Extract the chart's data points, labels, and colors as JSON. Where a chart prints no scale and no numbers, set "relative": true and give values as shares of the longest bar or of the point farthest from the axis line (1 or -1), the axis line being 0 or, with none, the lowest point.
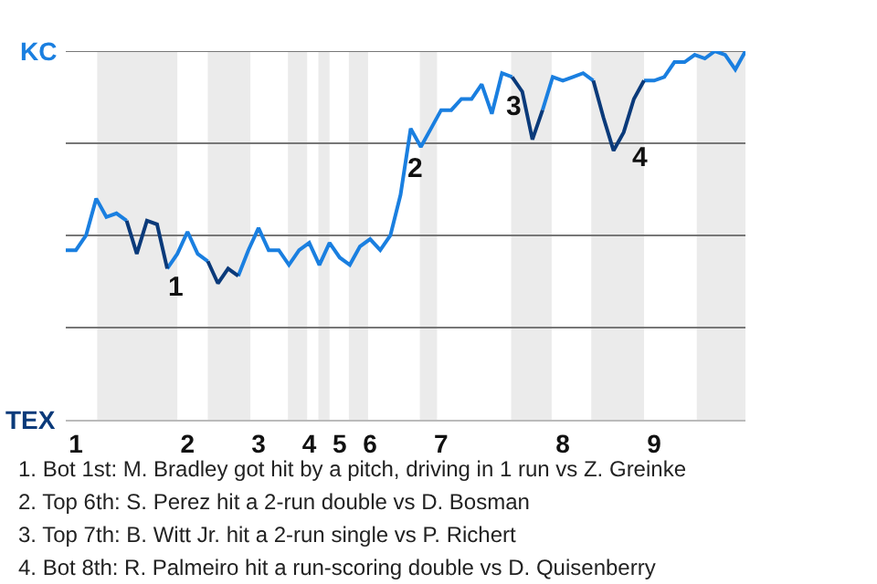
{
  "chart_data": {
    "type": "line",
    "categories": [
      null,
      "1",
      null,
      null,
      null,
      null,
      null,
      null,
      null,
      null,
      null,
      null,
      "2",
      null,
      null,
      null,
      null,
      null,
      null,
      "3",
      null,
      null,
      null,
      null,
      "4",
      null,
      null,
      "5",
      null,
      null,
      "6",
      null,
      null,
      null,
      null,
      null,
      null,
      "7",
      null,
      null,
      null,
      null,
      null,
      null,
      null,
      null,
      null,
      null,
      null,
      "8",
      null,
      null,
      null,
      null,
      null,
      null,
      null,
      null,
      "9",
      null,
      null,
      null,
      null,
      null,
      null,
      null,
      null,
      null
    ],
    "relative": true,
    "series": [
      {
        "color": "#1a7fe0",
        "values": [
          0.46,
          0.46,
          0.5,
          0.6,
          0.55,
          0.56,
          0.54,
          null,
          null,
          null,
          0.41,
          0.45,
          0.51,
          0.45,
          0.43,
          null,
          null,
          0.39,
          0.46,
          0.52,
          0.46,
          0.46,
          0.42,
          0.46,
          0.48,
          0.42,
          0.48,
          0.44,
          0.42,
          0.47,
          0.49,
          0.46,
          0.5,
          0.61,
          0.79,
          0.74,
          0.79,
          0.84,
          0.84,
          0.87,
          0.87,
          0.91,
          0.83,
          0.94,
          0.93,
          null,
          null,
          0.84,
          0.93,
          0.92,
          0.93,
          0.94,
          0.92,
          null,
          null,
          null,
          null,
          0.92,
          0.92,
          0.93,
          0.97,
          0.97,
          0.99,
          0.98,
          1.0,
          0.99,
          0.95,
          1.0
        ]
      },
      {
        "color": "#0a3a7a",
        "values": [
          null,
          null,
          null,
          null,
          null,
          null,
          0.54,
          0.45,
          0.54,
          0.53,
          0.41,
          null,
          null,
          null,
          0.43,
          0.37,
          0.41,
          0.39,
          null,
          null,
          null,
          null,
          null,
          null,
          null,
          null,
          null,
          null,
          null,
          null,
          null,
          null,
          null,
          null,
          null,
          null,
          null,
          null,
          null,
          null,
          null,
          null,
          null,
          null,
          0.93,
          0.89,
          0.76,
          0.84,
          null,
          null,
          null,
          null,
          0.92,
          0.82,
          0.73,
          0.78,
          0.87,
          0.92,
          null,
          null,
          null,
          null,
          null,
          null,
          null,
          null,
          null,
          null
        ]
      }
    ],
    "marker": "none",
    "ref_lines": [
      {
        "axis": "y",
        "value": 0.25,
        "color": "#777777"
      },
      {
        "axis": "y",
        "value": 0.5,
        "color": "#777777"
      },
      {
        "axis": "y",
        "value": 0.75,
        "color": "#777777"
      },
      {
        "axis": "y",
        "value": 1,
        "color": "#777777"
      }
    ],
    "annotations": [
      "KC",
      "TEX",
      "1",
      "2",
      "3",
      "4",
      "1. Bot 1st: M. Bradley got hit by a pitch, driving in 1 run vs Z. Greinke",
      "2. Top 6th: S. Perez hit a 2-run double vs D. Bosman",
      "3. Top 7th: B. Witt Jr. hit a 2-run single vs P. Richert",
      "4. Bot 8th: R. Palmeiro hit a run-scoring double vs D. Quisenberry"
    ]
  }
}
